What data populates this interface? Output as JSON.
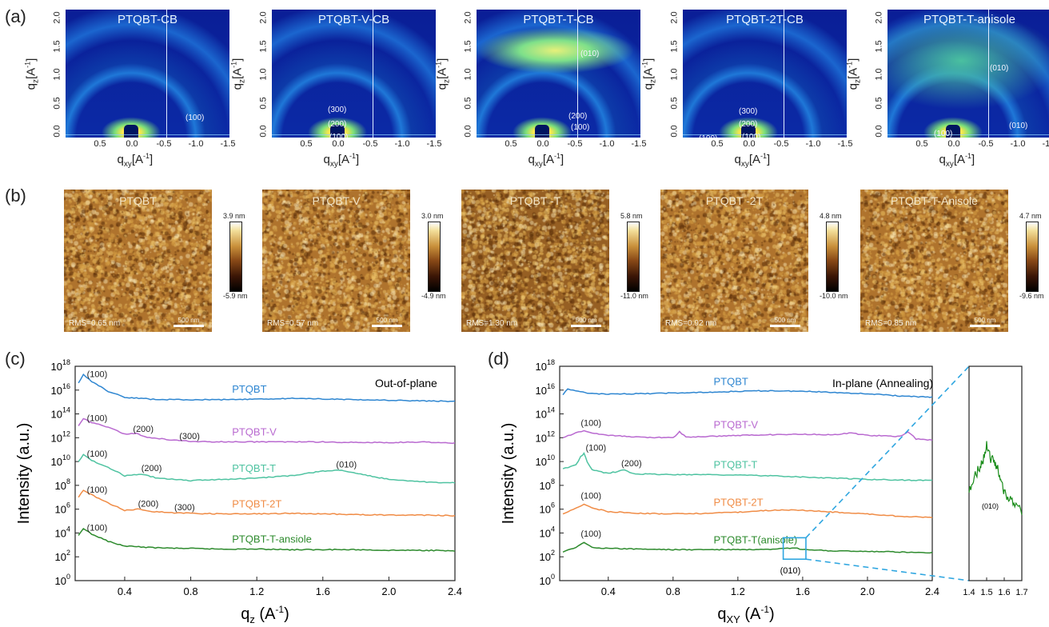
{
  "panel_labels": {
    "a": "(a)",
    "b": "(b)",
    "c": "(c)",
    "d": "(d)"
  },
  "giwaxs": {
    "y_label": "q",
    "y_label_sub": "z",
    "y_label_unit": "[A",
    "y_label_sup": "-1",
    "x_label": "q",
    "x_label_sub": "xy",
    "x_label_unit": "[A",
    "x_label_sup": "-1",
    "y_ticks": [
      "0.0",
      "0.5",
      "1.0",
      "1.5",
      "2.0"
    ],
    "x_ticks": [
      "0.5",
      "0.0",
      "-0.5",
      "-1.0",
      "-1.5"
    ],
    "panels": [
      {
        "title": "PTQBT-CB",
        "peaks": [
          "(100)"
        ]
      },
      {
        "title": "PTQBT-V-CB",
        "peaks": [
          "(300)",
          "(200)",
          "(100)",
          "(100)"
        ]
      },
      {
        "title": "PTQBT-T-CB",
        "peaks": [
          "(010)",
          "(200)",
          "(100)",
          "(200)",
          "(100)"
        ]
      },
      {
        "title": "PTQBT-2T-CB",
        "peaks": [
          "(300)",
          "(200)",
          "(100)",
          "(100)"
        ]
      },
      {
        "title": "PTQBT-T-anisole",
        "peaks": [
          "(010)",
          "(100)",
          "(100)",
          "(010)"
        ]
      }
    ]
  },
  "afm": [
    {
      "title": "PTQBT",
      "rms": "RMS=0.65 nm",
      "scale": "500 nm",
      "max": "3.9 nm",
      "min": "-5.9 nm"
    },
    {
      "title": "PTQBT-V",
      "rms": "RMS=0.57 nm",
      "scale": "500 nm",
      "max": "3.0 nm",
      "min": "-4.9 nm"
    },
    {
      "title": "PTQBT -T",
      "rms": "RMS=1.30 nm",
      "scale": "500 nm",
      "max": "5.8 nm",
      "min": "-11.0 nm"
    },
    {
      "title": "PTQBT -2T",
      "rms": "RMS=0.92 nm",
      "scale": "500 nm",
      "max": "4.8 nm",
      "min": "-10.0 nm"
    },
    {
      "title": "PTQBT-T-Anisole",
      "rms": "RMS=0.85 nm",
      "scale": "500 nm",
      "max": "4.7 nm",
      "min": "-9.6 nm"
    }
  ],
  "chart_data": [
    {
      "type": "line",
      "panel": "(c)",
      "annotation": "Out-of-plane",
      "ylabel": "Intensity (a.u.)",
      "xlabel": "q",
      "xlabel_sub": "z",
      "xlabel_unit": " (A",
      "xlabel_sup": "-1",
      "xlabel_close": ")",
      "xlim": [
        0.1,
        2.4
      ],
      "ylim_log10": [
        0,
        18
      ],
      "log_scale_y": true,
      "x_ticks": [
        0.4,
        0.8,
        1.2,
        1.6,
        2.0,
        2.4
      ],
      "x_tick_labels": [
        "0.4",
        "0.8",
        "1.2",
        "1.6",
        "2.0",
        "2.4"
      ],
      "y_tick_exponents": [
        0,
        2,
        4,
        6,
        8,
        10,
        12,
        14,
        16,
        18
      ],
      "y_tick_base": "10",
      "series": [
        {
          "name": "PTQBT",
          "color": "#2e86d1",
          "x": [
            0.12,
            0.15,
            0.2,
            0.3,
            0.4,
            0.6,
            0.8,
            1.0,
            1.2,
            1.4,
            1.6,
            1.8,
            2.0,
            2.2,
            2.4
          ],
          "log10_y": [
            16.6,
            17.3,
            16.7,
            15.9,
            15.4,
            15.2,
            15.2,
            15.2,
            15.25,
            15.3,
            15.25,
            15.2,
            15.15,
            15.1,
            15.05
          ],
          "peaks": [
            {
              "x": 0.19,
              "log10_y": 17.1,
              "label": "(100)"
            }
          ]
        },
        {
          "name": "PTQBT-V",
          "color": "#b96ad0",
          "x": [
            0.12,
            0.15,
            0.2,
            0.3,
            0.4,
            0.47,
            0.55,
            0.7,
            0.8,
            1.0,
            1.2,
            1.4,
            1.6,
            1.8,
            2.0,
            2.2,
            2.4
          ],
          "log10_y": [
            13.0,
            13.6,
            13.3,
            12.9,
            12.3,
            12.35,
            12.0,
            11.8,
            11.7,
            11.65,
            11.65,
            11.65,
            11.65,
            11.6,
            11.6,
            11.65,
            11.55
          ],
          "peaks": [
            {
              "x": 0.19,
              "log10_y": 13.4,
              "label": "(100)"
            },
            {
              "x": 0.47,
              "log10_y": 12.5,
              "label": "(200)"
            },
            {
              "x": 0.75,
              "log10_y": 11.9,
              "label": "(300)"
            }
          ]
        },
        {
          "name": "PTQBT-T",
          "color": "#4fc3a1",
          "x": [
            0.12,
            0.15,
            0.2,
            0.3,
            0.4,
            0.5,
            0.6,
            0.8,
            1.0,
            1.2,
            1.4,
            1.6,
            1.7,
            1.8,
            2.0,
            2.2,
            2.4
          ],
          "log10_y": [
            10.0,
            10.6,
            10.1,
            9.5,
            8.8,
            8.95,
            8.6,
            8.4,
            8.5,
            8.6,
            8.8,
            9.2,
            9.3,
            9.0,
            8.5,
            8.3,
            8.2
          ],
          "peaks": [
            {
              "x": 0.19,
              "log10_y": 10.4,
              "label": "(100)"
            },
            {
              "x": 0.52,
              "log10_y": 9.2,
              "label": "(200)"
            },
            {
              "x": 1.7,
              "log10_y": 9.5,
              "label": "(010)"
            }
          ]
        },
        {
          "name": "PTQBT-2T",
          "color": "#f08c46",
          "x": [
            0.12,
            0.15,
            0.2,
            0.3,
            0.4,
            0.48,
            0.55,
            0.7,
            0.8,
            1.0,
            1.2,
            1.4,
            1.6,
            1.8,
            2.0,
            2.2,
            2.4
          ],
          "log10_y": [
            7.0,
            7.6,
            7.2,
            6.5,
            5.9,
            6.0,
            5.8,
            5.7,
            5.65,
            5.6,
            5.6,
            5.65,
            5.6,
            5.55,
            5.5,
            5.5,
            5.45
          ],
          "peaks": [
            {
              "x": 0.19,
              "log10_y": 7.4,
              "label": "(100)"
            },
            {
              "x": 0.5,
              "log10_y": 6.2,
              "label": "(200)"
            },
            {
              "x": 0.72,
              "log10_y": 5.9,
              "label": "(300)"
            }
          ]
        },
        {
          "name": "PTQBT-T-ansiole",
          "color": "#2e8b2e",
          "x": [
            0.12,
            0.15,
            0.2,
            0.3,
            0.4,
            0.6,
            0.8,
            1.0,
            1.2,
            1.4,
            1.6,
            1.8,
            2.0,
            2.2,
            2.4
          ],
          "log10_y": [
            3.8,
            4.4,
            3.9,
            3.3,
            2.9,
            2.75,
            2.7,
            2.65,
            2.65,
            2.6,
            2.6,
            2.6,
            2.55,
            2.55,
            2.5
          ],
          "peaks": [
            {
              "x": 0.19,
              "log10_y": 4.2,
              "label": "(100)"
            }
          ]
        }
      ]
    },
    {
      "type": "line",
      "panel": "(d)",
      "annotation": "In-plane (Annealing)",
      "ylabel": "Intensity (a.u.)",
      "xlabel": "q",
      "xlabel_sub": "XY",
      "xlabel_unit": " (A",
      "xlabel_sup": "-1",
      "xlabel_close": ")",
      "xlim": [
        0.1,
        2.4
      ],
      "ylim_log10": [
        0,
        18
      ],
      "log_scale_y": true,
      "x_ticks": [
        0.4,
        0.8,
        1.2,
        1.6,
        2.0,
        2.4
      ],
      "x_tick_labels": [
        "0.4",
        "0.8",
        "1.2",
        "1.6",
        "2.0",
        "2.4"
      ],
      "y_tick_exponents": [
        0,
        2,
        4,
        6,
        8,
        10,
        12,
        14,
        16,
        18
      ],
      "y_tick_base": "10",
      "series": [
        {
          "name": "PTQBT",
          "color": "#2e86d1",
          "x": [
            0.12,
            0.15,
            0.2,
            0.3,
            0.4,
            0.6,
            0.8,
            1.0,
            1.2,
            1.4,
            1.6,
            1.8,
            2.0,
            2.2,
            2.4
          ],
          "log10_y": [
            15.6,
            16.1,
            15.9,
            15.7,
            15.65,
            15.7,
            15.75,
            15.8,
            15.9,
            15.95,
            15.9,
            15.8,
            15.7,
            15.5,
            15.4
          ],
          "peaks": []
        },
        {
          "name": "PTQBT-V",
          "color": "#b96ad0",
          "x": [
            0.12,
            0.2,
            0.25,
            0.3,
            0.4,
            0.6,
            0.8,
            0.84,
            0.88,
            1.0,
            1.2,
            1.4,
            1.6,
            1.8,
            1.9,
            2.0,
            2.2,
            2.25,
            2.3,
            2.4
          ],
          "log10_y": [
            12.0,
            12.4,
            12.6,
            12.4,
            12.2,
            12.05,
            12.0,
            12.5,
            12.05,
            12.1,
            12.2,
            12.25,
            12.3,
            12.25,
            12.4,
            12.2,
            12.1,
            12.5,
            11.9,
            11.8
          ],
          "peaks": [
            {
              "x": 0.25,
              "log10_y": 13.0,
              "label": "(100)"
            }
          ]
        },
        {
          "name": "PTQBT-T",
          "color": "#4fc3a1",
          "x": [
            0.12,
            0.2,
            0.23,
            0.25,
            0.27,
            0.3,
            0.4,
            0.5,
            0.55,
            0.6,
            0.8,
            1.0,
            1.2,
            1.4,
            1.6,
            1.8,
            2.0,
            2.2,
            2.4
          ],
          "log10_y": [
            9.4,
            9.7,
            10.4,
            10.7,
            10.0,
            9.3,
            9.0,
            9.3,
            9.0,
            8.95,
            8.9,
            8.9,
            8.85,
            8.8,
            8.7,
            8.6,
            8.5,
            8.45,
            8.4
          ],
          "peaks": [
            {
              "x": 0.28,
              "log10_y": 10.9,
              "label": "(100)"
            },
            {
              "x": 0.5,
              "log10_y": 9.6,
              "label": "(200)"
            }
          ]
        },
        {
          "name": "PTQBT-2T",
          "color": "#f08c46",
          "x": [
            0.12,
            0.2,
            0.25,
            0.3,
            0.4,
            0.6,
            0.8,
            1.0,
            1.2,
            1.4,
            1.5,
            1.6,
            1.8,
            2.0,
            2.2,
            2.4
          ],
          "log10_y": [
            5.6,
            6.1,
            6.4,
            6.1,
            5.8,
            5.65,
            5.6,
            5.65,
            5.75,
            5.9,
            5.95,
            5.9,
            5.75,
            5.6,
            5.4,
            5.3
          ],
          "peaks": [
            {
              "x": 0.25,
              "log10_y": 6.9,
              "label": "(100)"
            }
          ]
        },
        {
          "name": "PTQBT-T(anisole)",
          "color": "#2e8b2e",
          "x": [
            0.12,
            0.2,
            0.25,
            0.3,
            0.4,
            0.6,
            0.8,
            1.0,
            1.2,
            1.4,
            1.55,
            1.6,
            1.8,
            2.0,
            2.2,
            2.4
          ],
          "log10_y": [
            2.4,
            2.8,
            3.2,
            2.8,
            2.7,
            2.65,
            2.6,
            2.6,
            2.6,
            2.6,
            2.75,
            2.6,
            2.5,
            2.45,
            2.4,
            2.35
          ],
          "peaks": [
            {
              "x": 0.25,
              "log10_y": 3.7,
              "label": "(100)"
            }
          ]
        }
      ],
      "zoom_box_label": "(010)",
      "zoom_box_xrange": [
        1.48,
        1.62
      ],
      "zoom_box_log10_yrange": [
        1.8,
        3.6
      ]
    },
    {
      "type": "line",
      "panel": "(d) inset",
      "xlim": [
        1.4,
        1.7
      ],
      "x_ticks": [
        1.4,
        1.5,
        1.6,
        1.7
      ],
      "x_tick_labels": [
        "1.4",
        "1.5",
        "1.6",
        "1.7"
      ],
      "peak_label": "(010)",
      "series": [
        {
          "name": "PTQBT-T(anisole)",
          "color": "#1a8c1a",
          "x": [
            1.4,
            1.43,
            1.46,
            1.48,
            1.5,
            1.52,
            1.54,
            1.56,
            1.58,
            1.6,
            1.63,
            1.66,
            1.7
          ],
          "y": [
            0.35,
            0.55,
            0.58,
            0.7,
            0.85,
            0.72,
            0.68,
            0.6,
            0.5,
            0.35,
            0.3,
            0.2,
            0.15
          ]
        }
      ]
    }
  ]
}
